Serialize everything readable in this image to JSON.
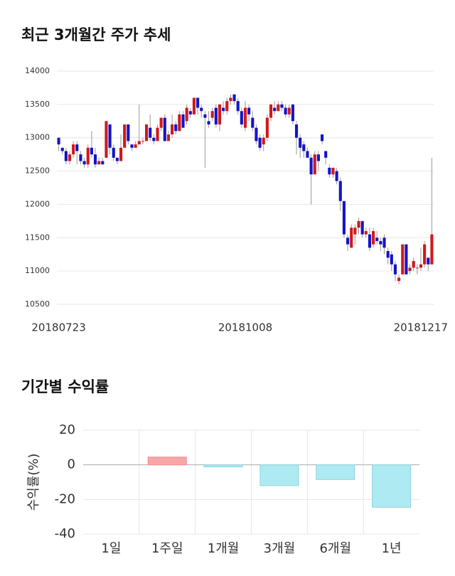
{
  "chart_data": [
    {
      "type": "candlestick",
      "title": "최근 3개월간 주가 추세",
      "categories": [
        "20180723",
        null,
        null,
        null,
        null,
        null,
        null,
        null,
        null,
        null,
        null,
        null,
        null,
        null,
        null,
        null,
        null,
        null,
        null,
        null,
        null,
        null,
        null,
        null,
        null,
        null,
        null,
        null,
        null,
        null,
        null,
        null,
        null,
        null,
        null,
        null,
        null,
        null,
        null,
        null,
        null,
        null,
        null,
        null,
        null,
        null,
        null,
        null,
        null,
        null,
        null,
        "20181008",
        null,
        null,
        null,
        null,
        null,
        null,
        null,
        null,
        null,
        null,
        null,
        null,
        null,
        null,
        null,
        null,
        null,
        null,
        null,
        null,
        null,
        null,
        null,
        null,
        null,
        null,
        null,
        null,
        null,
        null,
        null,
        null,
        null,
        null,
        null,
        null,
        null,
        null,
        null,
        null,
        null,
        null,
        null,
        null,
        null,
        null,
        null,
        null,
        null,
        null,
        "20181217"
      ],
      "open": [
        13000,
        12850,
        12800,
        12650,
        12750,
        12900,
        12750,
        12650,
        12600,
        12850,
        12750,
        12600,
        12650,
        12700,
        13200,
        12850,
        12700,
        12650,
        12850,
        13200,
        12900,
        12850,
        12900,
        12950,
        12950,
        13150,
        13000,
        12950,
        13150,
        13300,
        12950,
        13050,
        13200,
        13100,
        13350,
        13250,
        13400,
        13350,
        13600,
        13450,
        13350,
        13250,
        13300,
        13450,
        13200,
        13450,
        13400,
        13550,
        13650,
        13550,
        13400,
        13150,
        13450,
        13300,
        13150,
        13000,
        12900,
        13000,
        13300,
        13450,
        13400,
        13500,
        13450,
        13350,
        13500,
        13200,
        13000,
        12900,
        12800,
        12700,
        12450,
        12750,
        13050,
        12800,
        12550,
        12450,
        12500,
        12350,
        12050,
        11500,
        11350,
        11550,
        11650,
        11750,
        11550,
        11550,
        11400,
        11500,
        11450,
        11500,
        11300,
        11250,
        11100,
        10850,
        10950,
        11400,
        11000,
        11050,
        11050,
        11050,
        11100,
        11200,
        11100
      ],
      "high": [
        13000,
        12850,
        12850,
        12800,
        12950,
        12950,
        12800,
        12700,
        12900,
        13100,
        12850,
        12700,
        12700,
        13250,
        13200,
        12900,
        12700,
        13050,
        13200,
        13200,
        12900,
        12950,
        13500,
        13000,
        13200,
        13350,
        13050,
        13200,
        13300,
        13350,
        13100,
        13350,
        13250,
        13400,
        13400,
        13500,
        13450,
        13600,
        13600,
        13500,
        13400,
        13400,
        13450,
        13500,
        13500,
        13550,
        13600,
        13650,
        13650,
        13600,
        13450,
        13550,
        13500,
        13400,
        13200,
        13050,
        13050,
        13350,
        13500,
        13550,
        13550,
        13550,
        13500,
        13500,
        13500,
        13250,
        13050,
        12950,
        12850,
        12750,
        12800,
        12800,
        13050,
        12800,
        12600,
        12550,
        12550,
        12400,
        12050,
        11550,
        11700,
        11700,
        11800,
        11750,
        11650,
        11650,
        11650,
        11600,
        11500,
        11550,
        11350,
        11300,
        11150,
        10950,
        11400,
        11400,
        11100,
        11200,
        11100,
        11350,
        11450,
        11200,
        12700
      ],
      "low": [
        12800,
        12750,
        12600,
        12600,
        12700,
        12600,
        12600,
        12550,
        12550,
        12700,
        12550,
        12600,
        12600,
        12700,
        12750,
        12650,
        12600,
        12650,
        12850,
        12900,
        12800,
        12850,
        12900,
        12900,
        12950,
        12950,
        12900,
        12950,
        13100,
        12950,
        12950,
        13000,
        13050,
        13100,
        13150,
        13200,
        13300,
        13350,
        13350,
        13300,
        12550,
        13150,
        13250,
        13150,
        13100,
        13350,
        13350,
        13500,
        13500,
        13350,
        13150,
        13100,
        13250,
        13100,
        12900,
        12800,
        12800,
        12950,
        13250,
        13350,
        13400,
        13400,
        13300,
        13300,
        13200,
        12750,
        12700,
        12700,
        12700,
        12000,
        12450,
        12500,
        12900,
        12600,
        12400,
        12400,
        12300,
        11900,
        11500,
        11300,
        11350,
        11400,
        11550,
        11500,
        11500,
        11300,
        11350,
        11400,
        11300,
        11250,
        11100,
        11000,
        10850,
        10800,
        10950,
        10950,
        10950,
        11000,
        10950,
        11000,
        11050,
        11000,
        11100
      ],
      "close": [
        12900,
        12800,
        12650,
        12750,
        12900,
        12800,
        12650,
        12600,
        12850,
        12750,
        12600,
        12650,
        12600,
        13250,
        12850,
        12700,
        12650,
        12850,
        13200,
        12950,
        12850,
        12900,
        12950,
        12950,
        13200,
        13000,
        12950,
        13150,
        13300,
        12950,
        13050,
        13200,
        13100,
        13350,
        13150,
        13450,
        13350,
        13600,
        13450,
        13400,
        13300,
        13200,
        13400,
        13200,
        13500,
        13400,
        13550,
        13600,
        13550,
        13400,
        13200,
        13450,
        13350,
        13150,
        12950,
        12850,
        13000,
        13300,
        13500,
        13400,
        13500,
        13450,
        13350,
        13450,
        13250,
        13000,
        12850,
        12800,
        12700,
        12450,
        12750,
        12650,
        12950,
        12700,
        12450,
        12550,
        12350,
        12050,
        11550,
        11400,
        11650,
        11650,
        11750,
        11550,
        11600,
        11350,
        11600,
        11450,
        11400,
        11350,
        11200,
        11100,
        10950,
        10900,
        11400,
        10950,
        11050,
        11150,
        11050,
        11100,
        11400,
        11100,
        11550
      ],
      "up_color": "#d0181c",
      "down_color": "#1414c8",
      "ylim": [
        10500,
        14000
      ],
      "yticks": [
        14000,
        13500,
        13000,
        12500,
        12000,
        11500,
        11000,
        10500
      ],
      "grid": true
    },
    {
      "type": "bar",
      "title": "기간별 수익률",
      "ylabel": "수익률(%)",
      "categories": [
        "1일",
        "1주일",
        "1개월",
        "3개월",
        "6개월",
        "1년"
      ],
      "values": [
        0,
        4.5,
        -1.2,
        -12,
        -8.5,
        -24.5
      ],
      "positive_color": "#f7a7a8",
      "negative_color": "#aeeaf2",
      "ylim": [
        -40,
        20
      ],
      "yticks": [
        20,
        0,
        -20,
        -40
      ],
      "grid": true
    }
  ]
}
